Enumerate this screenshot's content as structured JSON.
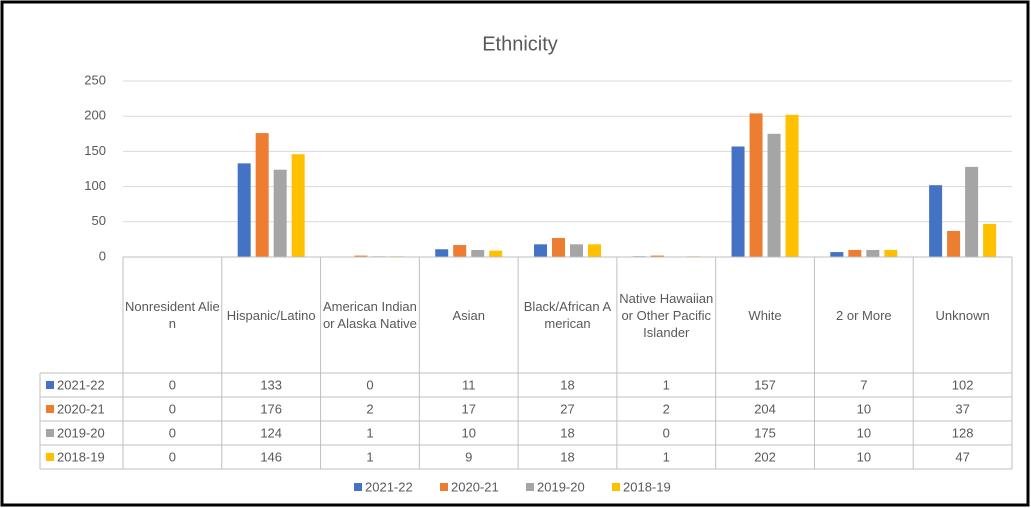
{
  "chart_data": {
    "type": "bar",
    "title": "Ethnicity",
    "categories": [
      "Nonresident Alien",
      "Hispanic/Latino",
      "American Indian or Alaska Native",
      "Asian",
      "Black/African American",
      "Native Hawaiian or Other Pacific Islander",
      "White",
      "2 or More",
      "Unknown"
    ],
    "series": [
      {
        "name": "2021-22",
        "color": "#4472c4",
        "values": [
          0,
          133,
          0,
          11,
          18,
          1,
          157,
          7,
          102
        ]
      },
      {
        "name": "2020-21",
        "color": "#ed7d31",
        "values": [
          0,
          176,
          2,
          17,
          27,
          2,
          204,
          10,
          37
        ]
      },
      {
        "name": "2019-20",
        "color": "#a5a5a5",
        "values": [
          0,
          124,
          1,
          10,
          18,
          0,
          175,
          10,
          128
        ]
      },
      {
        "name": "2018-19",
        "color": "#ffc000",
        "values": [
          0,
          146,
          1,
          9,
          18,
          1,
          202,
          10,
          47
        ]
      }
    ],
    "ylim": [
      0,
      250
    ],
    "yticks": [
      0,
      50,
      100,
      150,
      200,
      250
    ],
    "grid": true,
    "legend": "bottom",
    "data_table": true
  }
}
